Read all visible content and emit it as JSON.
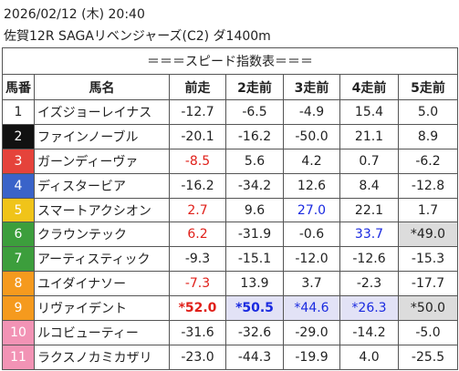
{
  "header": {
    "date": "2026/02/12 (木) 20:40",
    "race": "佐賀12R SAGAリベンジャーズ(C2) ダ1400m"
  },
  "table": {
    "title": "＝＝＝スピード指数表＝＝＝",
    "columns": [
      "馬番",
      "馬名",
      "前走",
      "2走前",
      "3走前",
      "4走前",
      "5走前"
    ],
    "rows": [
      [
        "1",
        "イズジョーレイナス",
        "-12.7",
        "-6.5",
        "-4.9",
        "15.4",
        "5.0"
      ],
      [
        "2",
        "ファインノーブル",
        "-20.1",
        "-16.2",
        "-50.0",
        "21.1",
        "8.9"
      ],
      [
        "3",
        "ガーンディーヴァ",
        "-8.5",
        "5.6",
        "4.2",
        "0.7",
        "-6.2"
      ],
      [
        "4",
        "ディスタービア",
        "-16.2",
        "-34.2",
        "12.6",
        "8.4",
        "-12.8"
      ],
      [
        "5",
        "スマートアクシオン",
        "2.7",
        "9.6",
        "27.0",
        "22.1",
        "1.7"
      ],
      [
        "6",
        "クラウンテック",
        "6.2",
        "-31.9",
        "-0.6",
        "33.7",
        "*49.0"
      ],
      [
        "7",
        "アーティスティック",
        "-9.3",
        "-15.1",
        "-12.0",
        "-12.6",
        "-15.3"
      ],
      [
        "8",
        "ユイダイナソー",
        "-7.3",
        "13.9",
        "3.7",
        "-2.3",
        "-17.7"
      ],
      [
        "9",
        "リヴァイデント",
        "*52.0",
        "*50.5",
        "*44.6",
        "*26.3",
        "*50.0"
      ],
      [
        "10",
        "ルコビューティー",
        "-31.6",
        "-32.6",
        "-29.0",
        "-14.2",
        "-5.0"
      ],
      [
        "11",
        "ラクスノカミカザリ",
        "-23.0",
        "-44.3",
        "-19.9",
        "4.0",
        "-25.5"
      ]
    ]
  }
}
